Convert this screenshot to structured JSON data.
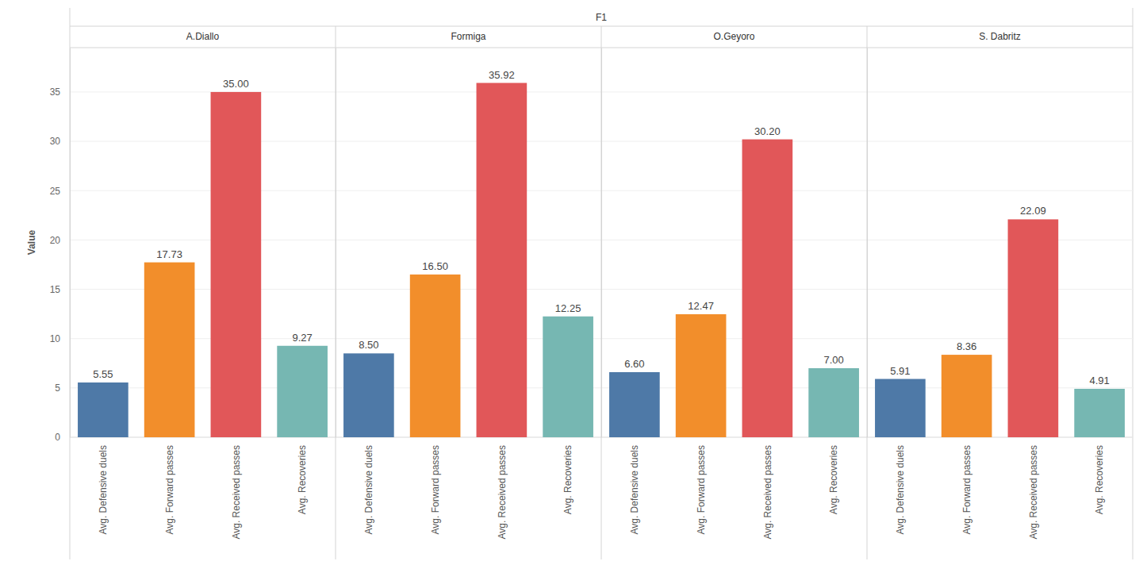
{
  "title": "F1",
  "y_label": "Value",
  "chart_data": [
    {
      "type": "bar",
      "title": "A.Diallo",
      "categories": [
        "Avg. Defensive duels",
        "Avg. Forward passes",
        "Avg. Received passes",
        "Avg. Recoveries"
      ],
      "values": [
        5.55,
        17.73,
        35.0,
        9.27
      ],
      "value_labels": [
        "5.55",
        "17.73",
        "35.00",
        "9.27"
      ],
      "colors": [
        "#4e79a7",
        "#f28e2b",
        "#e15759",
        "#76b7b2"
      ],
      "ylim": [
        0,
        39.5
      ],
      "yticks": [
        0,
        5,
        10,
        15,
        20,
        25,
        30,
        35
      ],
      "grid": true,
      "data_labels": true
    },
    {
      "type": "bar",
      "title": "Formiga",
      "categories": [
        "Avg. Defensive duels",
        "Avg. Forward passes",
        "Avg. Received passes",
        "Avg. Recoveries"
      ],
      "values": [
        8.5,
        16.5,
        35.92,
        12.25
      ],
      "value_labels": [
        "8.50",
        "16.50",
        "35.92",
        "12.25"
      ],
      "colors": [
        "#4e79a7",
        "#f28e2b",
        "#e15759",
        "#76b7b2"
      ],
      "ylim": [
        0,
        39.5
      ],
      "yticks": [
        0,
        5,
        10,
        15,
        20,
        25,
        30,
        35
      ],
      "grid": true,
      "data_labels": true,
      "tick_labels": "x"
    },
    {
      "type": "bar",
      "title": "O.Geyoro",
      "categories": [
        "Avg. Defensive duels",
        "Avg. Forward passes",
        "Avg. Received passes",
        "Avg. Recoveries"
      ],
      "values": [
        6.6,
        12.47,
        30.2,
        7.0
      ],
      "value_labels": [
        "6.60",
        "12.47",
        "30.20",
        "7.00"
      ],
      "colors": [
        "#4e79a7",
        "#f28e2b",
        "#e15759",
        "#76b7b2"
      ],
      "ylim": [
        0,
        39.5
      ],
      "yticks": [
        0,
        5,
        10,
        15,
        20,
        25,
        30,
        35
      ],
      "grid": true,
      "data_labels": true,
      "tick_labels": "x"
    },
    {
      "type": "bar",
      "title": "S. Dabritz",
      "categories": [
        "Avg. Defensive duels",
        "Avg. Forward passes",
        "Avg. Received passes",
        "Avg. Recoveries"
      ],
      "values": [
        5.91,
        8.36,
        22.09,
        4.91
      ],
      "value_labels": [
        "5.91",
        "8.36",
        "22.09",
        "4.91"
      ],
      "colors": [
        "#4e79a7",
        "#f28e2b",
        "#e15759",
        "#76b7b2"
      ],
      "ylim": [
        0,
        39.5
      ],
      "yticks": [
        0,
        5,
        10,
        15,
        20,
        25,
        30,
        35
      ],
      "grid": true,
      "data_labels": true,
      "tick_labels": "x"
    }
  ]
}
